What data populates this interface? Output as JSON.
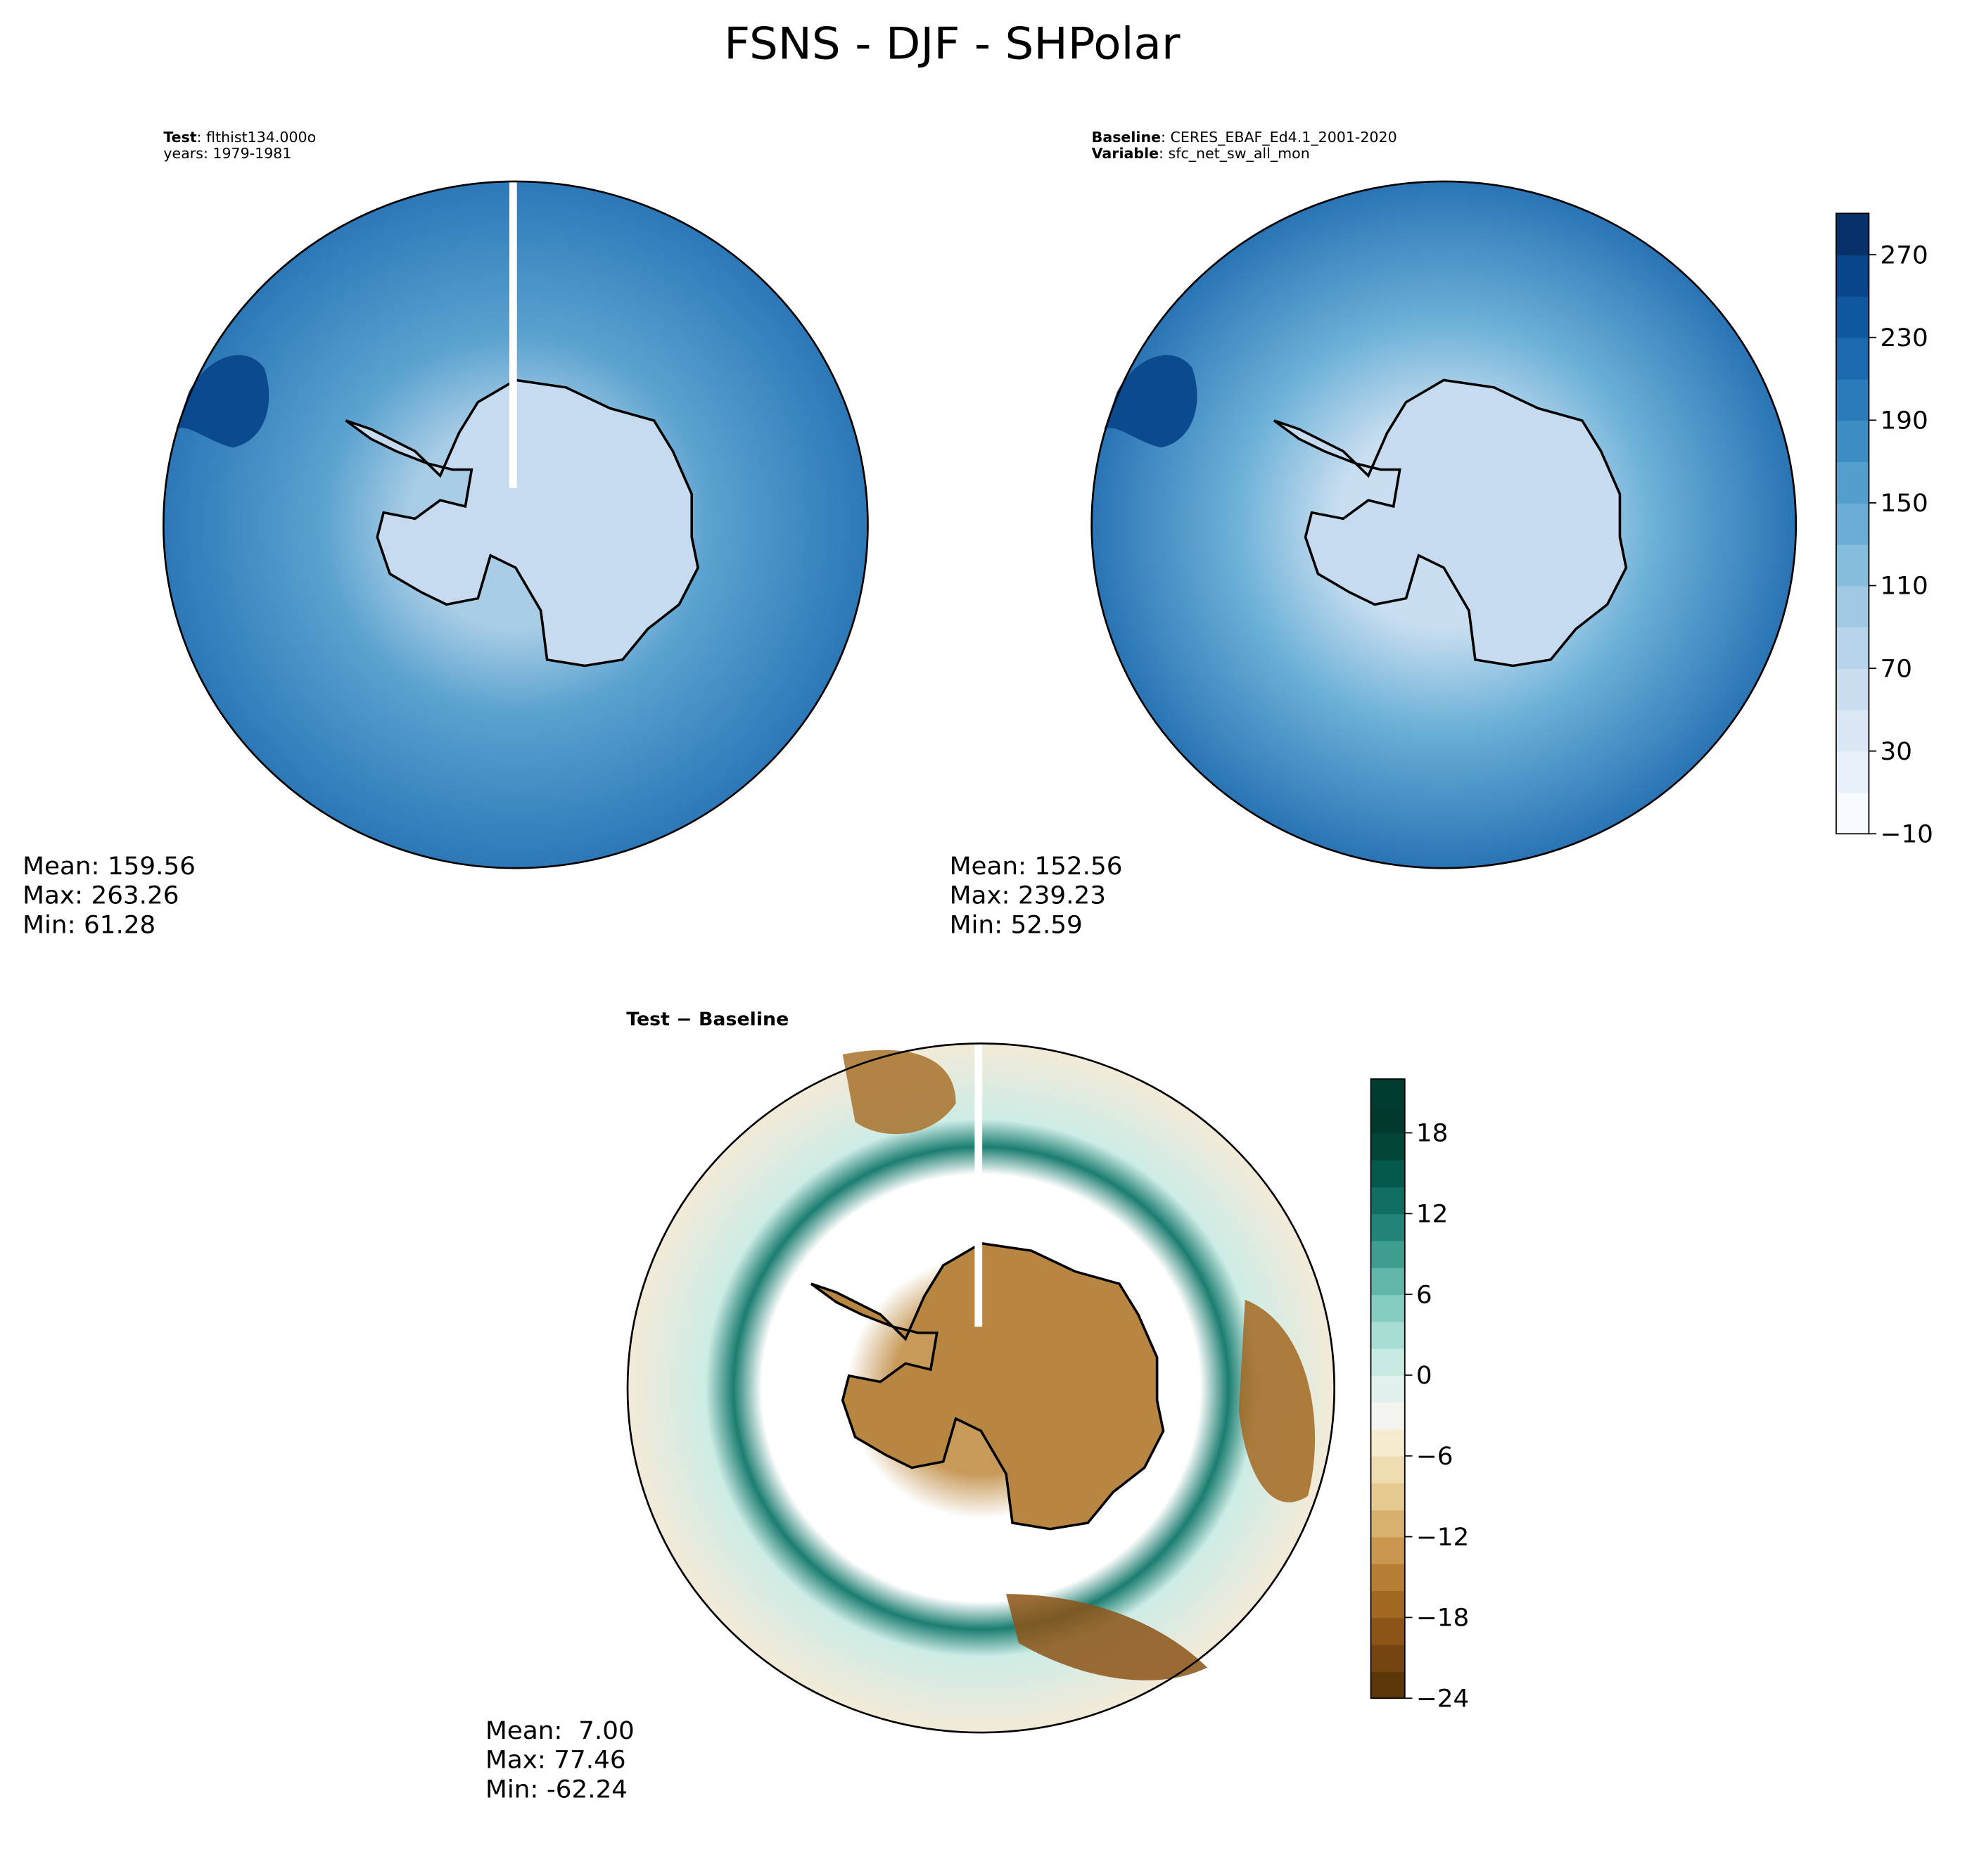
{
  "title": "FSNS - DJF - SHPolar",
  "chart_data": [
    {
      "type": "contour",
      "subtitle": [
        {
          "label": "Test",
          "text": ": flthist134.000o"
        },
        {
          "text": "years: 1979-1981"
        }
      ],
      "stats": [
        "Mean: 159.56",
        "Max: 263.26",
        "Min: 61.28"
      ]
    },
    {
      "type": "contour",
      "subtitle": [
        {
          "label": "Baseline",
          "text": ": CERES_EBAF_Ed4.1_2001-2020"
        },
        {
          "label": "Variable",
          "text": ": sfc_net_sw_all_mon"
        }
      ],
      "stats": [
        "Mean: 152.56",
        "Max: 239.23",
        "Min: 52.59"
      ],
      "zlim": [
        -10,
        290
      ],
      "zticks": [
        {
          "value": -10,
          "label": "−10"
        },
        30,
        70,
        110,
        150,
        190,
        230,
        270
      ],
      "colors": [
        "#f7fbff",
        "#e8f1fa",
        "#dae8f6",
        "#cadef0",
        "#b7d4ea",
        "#a0c9e3",
        "#86bcdc",
        "#6cadd5",
        "#539ecd",
        "#3d8dc4",
        "#2b7bba",
        "#1c69ae",
        "#0f579f",
        "#08458a",
        "#08306b"
      ]
    },
    {
      "type": "contour",
      "subtitle": [
        {
          "label": "Test − Baseline"
        }
      ],
      "stats": [
        "Mean:  7.00",
        "Max: 77.46",
        "Min: -62.24"
      ],
      "zlim": [
        -24,
        22
      ],
      "zticks": [
        {
          "value": -24,
          "label": "−24"
        },
        {
          "value": -18,
          "label": "−18"
        },
        {
          "value": -12,
          "label": "−12"
        },
        {
          "value": -6,
          "label": "−6"
        },
        0,
        6,
        12,
        18
      ],
      "colors": [
        "#5a3608",
        "#744510",
        "#8c5416",
        "#a26720",
        "#b77d34",
        "#c9974f",
        "#d8b16f",
        "#e5c98f",
        "#efdbb0",
        "#f6eacf",
        "#f4f4ee",
        "#e1f1ee",
        "#c7eae3",
        "#a8ddd4",
        "#86cdc1",
        "#61b6a9",
        "#3f9d90",
        "#228478",
        "#0f6d61",
        "#04594c",
        "#024638",
        "#01392d",
        "#003c30"
      ]
    }
  ]
}
